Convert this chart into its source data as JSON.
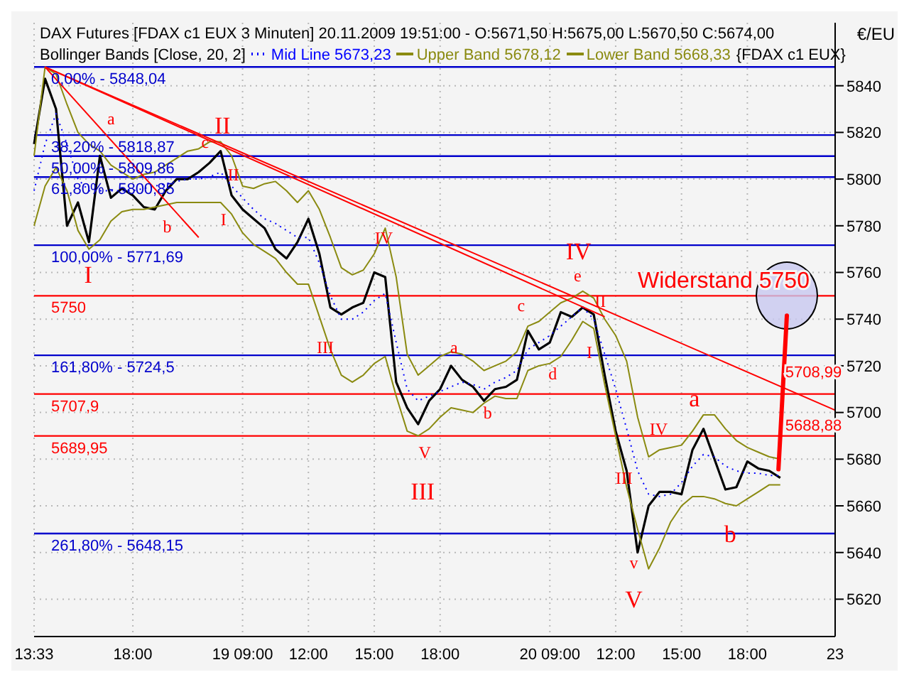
{
  "chart_data": {
    "type": "line",
    "title": "DAX Futures [FDAX c1 EUX  3 Minuten] 20.11.2009 19:51:00 - O:5671,50 H:5675,00 L:5670,50 C:5674,00",
    "subtitle": "Bollinger Bands [Close, 20, 2]",
    "ylabel": "€/EU",
    "categories": [
      "13:33",
      null,
      null,
      null,
      null,
      null,
      null,
      null,
      null,
      "18:00",
      null,
      null,
      null,
      null,
      null,
      null,
      null,
      null,
      null,
      "19 09:00",
      null,
      null,
      null,
      null,
      null,
      "12:00",
      null,
      null,
      null,
      null,
      null,
      "15:00",
      null,
      null,
      null,
      null,
      null,
      "18:00",
      null,
      null,
      null,
      null,
      null,
      null,
      null,
      null,
      null,
      "20 09:00",
      null,
      null,
      null,
      null,
      null,
      "12:00",
      null,
      null,
      null,
      null,
      null,
      "15:00",
      null,
      null,
      null,
      null,
      null,
      "18:00",
      null,
      null,
      null,
      null,
      null,
      null,
      null,
      "23"
    ],
    "ylim": [
      5604,
      5867
    ],
    "yticks": [
      5620,
      5640,
      5660,
      5680,
      5700,
      5720,
      5740,
      5760,
      5780,
      5800,
      5820,
      5840
    ],
    "grid": true,
    "legend": "top",
    "marker": "none",
    "series": [
      {
        "color": "#000000",
        "values": [
          5815,
          5843,
          5830,
          5780,
          5790,
          5773,
          5810,
          5792,
          5796,
          5793,
          5788,
          5787,
          5795,
          5800,
          5800,
          5803,
          5807,
          5812,
          5793,
          5787,
          5783,
          5779,
          5770,
          5766,
          5773,
          5783,
          5768,
          5745,
          5742,
          5745,
          5747,
          5760,
          5758,
          5713,
          5702,
          5695,
          5705,
          5710,
          5720,
          5714,
          5711,
          5705,
          5710,
          5711,
          5714,
          5735,
          5727,
          5730,
          5743,
          5741,
          5745,
          5742,
          5716,
          5692,
          5675,
          5640,
          5660,
          5666,
          5666,
          5665,
          5684,
          5693,
          5680,
          5667,
          5668,
          5679,
          5676,
          5675,
          5672,
          null,
          null,
          null,
          null,
          null
        ]
      },
      {
        "name": "Mid Line 5673,23",
        "color": "#0000ff",
        "line_style": "dotted",
        "values": [
          5795,
          5815,
          5828,
          5815,
          5800,
          5795,
          5795,
          5795,
          5795,
          5795,
          5796,
          5797,
          5798,
          5799,
          5800,
          5800,
          5801,
          5803,
          5797,
          5792,
          5787,
          5783,
          5781,
          5778,
          5775,
          5775,
          5764,
          5750,
          5740,
          5740,
          5743,
          5748,
          5751,
          5730,
          5710,
          5705,
          5707,
          5709,
          5711,
          5713,
          5712,
          5710,
          5713,
          5715,
          5718,
          5727,
          5730,
          5733,
          5737,
          5741,
          5745,
          5740,
          5725,
          5710,
          5693,
          5675,
          5665,
          5664,
          5665,
          5670,
          5677,
          5682,
          5681,
          5677,
          5675,
          5674,
          5674,
          5673,
          5673,
          null,
          null,
          null,
          null,
          null
        ]
      },
      {
        "name": "Upper Band 5678,12",
        "color": "#8a8a10",
        "values": [
          5810,
          5848,
          5845,
          5832,
          5820,
          5815,
          5812,
          5806,
          5803,
          5800,
          5802,
          5803,
          5806,
          5809,
          5812,
          5813,
          5816,
          5816,
          5810,
          5797,
          5796,
          5798,
          5799,
          5795,
          5790,
          5795,
          5787,
          5775,
          5762,
          5759,
          5761,
          5768,
          5779,
          5758,
          5725,
          5716,
          5720,
          5724,
          5726,
          5725,
          5722,
          5718,
          5720,
          5722,
          5726,
          5737,
          5739,
          5743,
          5747,
          5749,
          5752,
          5749,
          5740,
          5733,
          5722,
          5698,
          5681,
          5684,
          5685,
          5686,
          5692,
          5699,
          5699,
          5693,
          5688,
          5685,
          5683,
          5681,
          5680,
          null,
          null,
          null,
          null,
          null
        ]
      },
      {
        "name": "Lower Band 5668,33",
        "color": "#8a8a10",
        "values": [
          5780,
          5797,
          5805,
          5795,
          5778,
          5770,
          5774,
          5782,
          5786,
          5787,
          5787,
          5788,
          5789,
          5790,
          5790,
          5790,
          5790,
          5790,
          5785,
          5777,
          5772,
          5769,
          5766,
          5760,
          5755,
          5755,
          5741,
          5727,
          5716,
          5713,
          5716,
          5721,
          5724,
          5707,
          5692,
          5690,
          5693,
          5698,
          5702,
          5701,
          5700,
          5704,
          5707,
          5706,
          5706,
          5718,
          5720,
          5721,
          5724,
          5731,
          5739,
          5736,
          5712,
          5690,
          5668,
          5650,
          5633,
          5642,
          5653,
          5660,
          5664,
          5664,
          5663,
          5661,
          5660,
          5663,
          5666,
          5669,
          5669,
          null,
          null,
          null,
          null,
          null
        ]
      },
      {
        "color": "#ff0000",
        "values": [
          null,
          5848,
          null,
          null,
          null,
          null,
          null,
          null,
          null,
          null,
          null,
          null,
          null,
          null,
          null,
          null,
          null,
          null,
          null,
          null,
          null,
          null,
          null,
          null,
          null,
          null,
          null,
          null,
          null,
          null,
          null,
          null,
          null,
          null,
          null,
          null,
          null,
          null,
          null,
          null,
          null,
          null,
          null,
          null,
          null,
          null,
          null,
          null,
          null,
          null,
          null,
          null,
          null,
          null,
          null,
          null,
          null,
          null,
          null,
          null,
          null,
          null,
          null,
          null,
          null,
          null,
          null,
          null,
          null,
          null,
          null,
          null,
          null,
          5701
        ]
      },
      {
        "color": "#ff0000",
        "values": [
          null,
          5848,
          null,
          null,
          null,
          null,
          null,
          null,
          null,
          null,
          null,
          null,
          null,
          null,
          null,
          null,
          null,
          null,
          null,
          null,
          null,
          null,
          null,
          null,
          null,
          null,
          null,
          null,
          null,
          null,
          null,
          null,
          null,
          null,
          null,
          null,
          null,
          null,
          null,
          null,
          null,
          null,
          null,
          null,
          null,
          null,
          null,
          null,
          null,
          null,
          null,
          null,
          5741,
          null,
          null,
          null,
          null,
          null,
          null,
          null,
          null,
          null,
          null,
          null,
          null,
          null,
          null,
          null,
          null,
          null,
          null,
          null,
          null,
          null
        ]
      },
      {
        "color": "#ff0000",
        "values": [
          null,
          5848,
          null,
          null,
          null,
          null,
          null,
          null,
          null,
          null,
          null,
          null,
          null,
          null,
          null,
          5775,
          null,
          null,
          null,
          null,
          null,
          null,
          null,
          null,
          null,
          null,
          null,
          null,
          null,
          null,
          null,
          null,
          null,
          null,
          null,
          null,
          null,
          null,
          null,
          null,
          null,
          null,
          null,
          null,
          null,
          null,
          null,
          null,
          null,
          null,
          null,
          null,
          null,
          null,
          null,
          null,
          null,
          null,
          null,
          null,
          null,
          null,
          null,
          null,
          null,
          null,
          null,
          null,
          null,
          null,
          null,
          null,
          null,
          null
        ]
      }
    ],
    "ref_lines": [
      {
        "axis": "y",
        "value": 5848.04,
        "color": "#0000cc"
      },
      {
        "axis": "y",
        "value": 5818.87,
        "color": "#0000cc"
      },
      {
        "axis": "y",
        "value": 5809.86,
        "color": "#0000cc"
      },
      {
        "axis": "y",
        "value": 5800.85,
        "color": "#0000cc"
      },
      {
        "axis": "y",
        "value": 5771.69,
        "color": "#0000cc"
      },
      {
        "axis": "y",
        "value": 5724.5,
        "color": "#0000cc"
      },
      {
        "axis": "y",
        "value": 5648.15,
        "color": "#0000cc"
      },
      {
        "axis": "y",
        "value": 5750,
        "label": "5750",
        "color": "#ff0000"
      },
      {
        "axis": "y",
        "value": 5707.9,
        "label": "5707,9",
        "color": "#ff0000"
      },
      {
        "axis": "y",
        "value": 5689.95,
        "label": "5689,95",
        "color": "#ff0000"
      }
    ],
    "annotations": [
      "{FDAX c1 EUX}",
      "I",
      "a",
      "b",
      "c",
      "II",
      "II",
      "I",
      "III",
      "IV",
      "V",
      "III",
      "a",
      "b",
      "c",
      "d",
      "e",
      "IV",
      "II",
      "I",
      "IV",
      "III",
      "v",
      "V",
      "a",
      "b",
      {
        "text": "Widerstand 5750",
        "y": 5750
      },
      "5708,99",
      "5688,88",
      {
        "text": "0,00% - 5848,04",
        "y": 5848.04
      },
      {
        "text": "38,20% - 5818,87",
        "y": 5818.87
      },
      {
        "text": "50,00% - 5809,86",
        "y": 5809.86
      },
      {
        "text": "61,80% - 5800,85",
        "y": 5800.85
      },
      {
        "text": "100,00% - 5771,69",
        "y": 5771.69
      },
      {
        "text": "161,80% - 5724,5",
        "y": 5724.5
      },
      {
        "text": "261,80% - 5648,15",
        "y": 5648.15
      }
    ]
  }
}
